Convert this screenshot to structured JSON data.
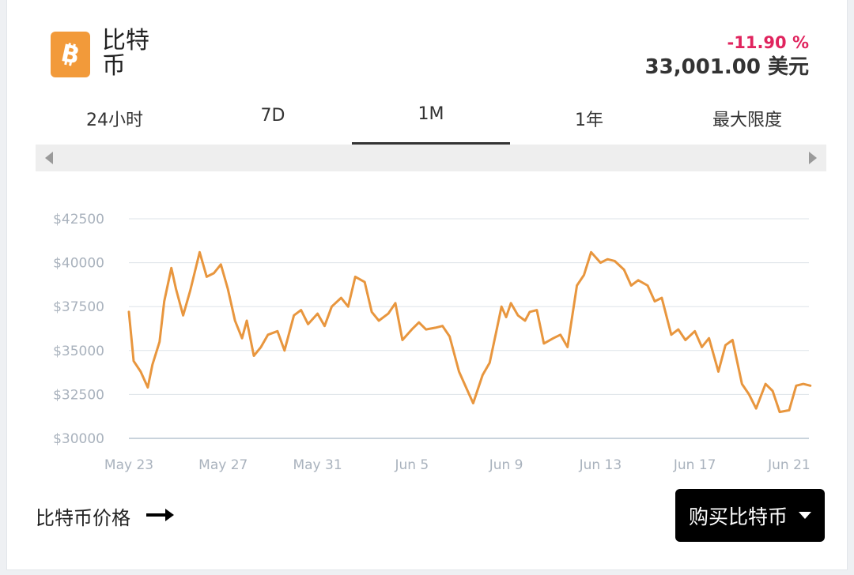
{
  "header": {
    "coin_name": "比特币",
    "change": "-11.90 %",
    "price": "33,001.00 美元",
    "logo_icon": "bitcoin-logo-icon"
  },
  "tabs": [
    {
      "label": "24小时",
      "active": false
    },
    {
      "label": "7D",
      "active": false
    },
    {
      "label": "1M",
      "active": true
    },
    {
      "label": "1年",
      "active": false
    },
    {
      "label": "最大限度",
      "active": false
    }
  ],
  "footer": {
    "price_link": "比特币价格",
    "buy_button": "购买比特币"
  },
  "colors": {
    "line": "#e8963e",
    "change_negative": "#e0245e",
    "grid": "#dde3e8",
    "axis_text": "#a9b2bd"
  },
  "chart_data": {
    "type": "line",
    "title": "",
    "xlabel": "",
    "ylabel": "",
    "ylim": [
      30000,
      42500
    ],
    "y_ticks": [
      "$42500",
      "$40000",
      "$37500",
      "$35000",
      "$32500",
      "$30000"
    ],
    "y_tick_values": [
      42500,
      40000,
      37500,
      35000,
      32500,
      30000
    ],
    "x_ticks": [
      "May 23",
      "May 27",
      "May 31",
      "Jun 5",
      "Jun 9",
      "Jun 13",
      "Jun 17",
      "Jun 21"
    ],
    "x_tick_days": [
      0,
      4,
      8,
      12,
      16,
      20,
      24,
      28
    ],
    "grid": true,
    "series": [
      {
        "x": [
          0,
          0.2,
          0.5,
          0.8,
          1.0,
          1.3,
          1.5,
          1.8,
          2.0,
          2.3,
          2.6,
          3.0,
          3.3,
          3.6,
          3.9,
          4.2,
          4.5,
          4.8,
          5.0,
          5.3,
          5.6,
          5.9,
          6.3,
          6.6,
          7.0,
          7.3,
          7.6,
          8.0,
          8.3,
          8.6,
          9.0,
          9.3,
          9.6,
          10.0,
          10.3,
          10.6,
          11.0,
          11.3,
          11.6,
          12.0,
          12.3,
          12.6,
          13.0,
          13.3,
          13.6,
          14.0,
          14.3,
          14.6,
          15.0,
          15.3,
          15.6,
          15.8,
          16.0,
          16.2,
          16.5,
          16.8,
          17.0,
          17.3,
          17.6,
          18.0,
          18.3,
          18.6,
          19.0,
          19.3,
          19.6,
          20.0,
          20.3,
          20.6,
          21.0,
          21.3,
          21.6,
          22.0,
          22.3,
          22.6,
          23.0,
          23.3,
          23.6,
          24.0,
          24.3,
          24.6,
          25.0,
          25.3,
          25.6,
          26.0,
          26.3,
          26.6,
          27.0,
          27.3,
          27.6,
          28.0,
          28.3,
          28.6,
          28.9
        ],
        "y": [
          37200,
          34400,
          33800,
          32900,
          34200,
          35500,
          37800,
          39700,
          38500,
          37000,
          38400,
          40600,
          39200,
          39400,
          39900,
          38500,
          36700,
          35700,
          36700,
          34700,
          35200,
          35900,
          36100,
          35000,
          37000,
          37300,
          36500,
          37100,
          36400,
          37500,
          38000,
          37500,
          39200,
          38900,
          37200,
          36700,
          37100,
          37700,
          35600,
          36200,
          36600,
          36200,
          36300,
          36400,
          35800,
          33800,
          32900,
          32000,
          33600,
          34300,
          36200,
          37500,
          36900,
          37700,
          37000,
          36700,
          37200,
          37300,
          35400,
          35700,
          35900,
          35200,
          38700,
          39300,
          40600,
          40000,
          40200,
          40100,
          39600,
          38700,
          39000,
          38700,
          37800,
          38000,
          35900,
          36200,
          35600,
          36100,
          35200,
          35700,
          33800,
          35300,
          35600,
          33100,
          32500,
          31700,
          33100,
          32700,
          31500,
          31600,
          33000,
          33100,
          33000
        ]
      }
    ]
  }
}
